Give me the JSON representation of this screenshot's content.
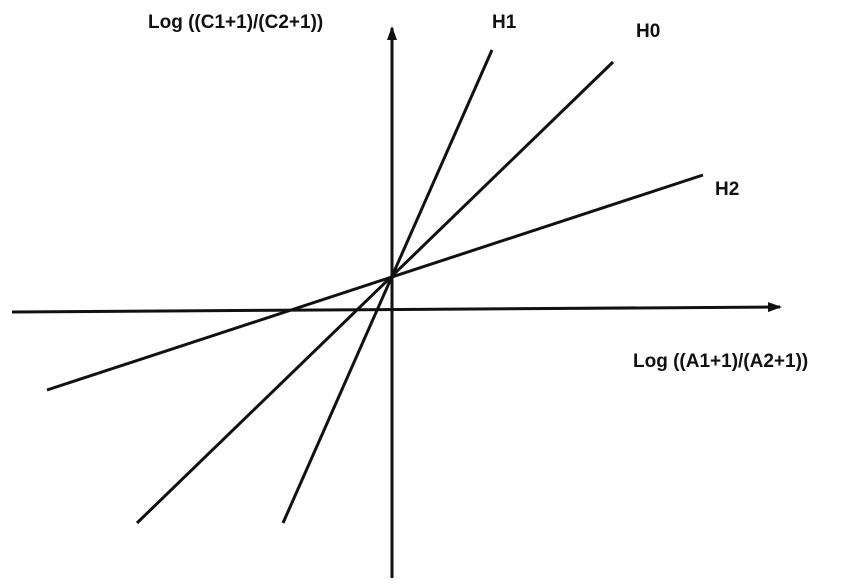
{
  "diagram": {
    "y_axis_label": "Log ((C1+1)/(C2+1))",
    "x_axis_label": "Log ((A1+1)/(A2+1))",
    "lines": [
      {
        "id": "H1",
        "label": "H1"
      },
      {
        "id": "H0",
        "label": "H0"
      },
      {
        "id": "H2",
        "label": "H2"
      }
    ],
    "colors": {
      "stroke": "#111111",
      "background": "#ffffff"
    }
  }
}
